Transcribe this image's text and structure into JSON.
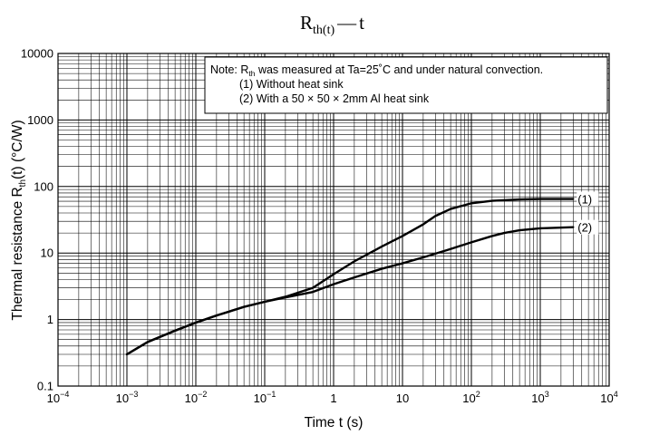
{
  "chart_data": {
    "type": "line",
    "title": {
      "main": "R",
      "sub": "th(t)",
      "dash": "—",
      "var": "t"
    },
    "xlabel": "Time   t   (s)",
    "ylabel": {
      "prefix": "Thermal resistance   R",
      "sub": "th",
      "suffix": "(t)    (°C/W)"
    },
    "x_scale": "log",
    "y_scale": "log",
    "xlim": [
      0.0001,
      10000
    ],
    "ylim": [
      0.1,
      10000
    ],
    "x_ticks": [
      {
        "value": 0.0001,
        "base": "10",
        "exp": "−4"
      },
      {
        "value": 0.001,
        "base": "10",
        "exp": "−3"
      },
      {
        "value": 0.01,
        "base": "10",
        "exp": "−2"
      },
      {
        "value": 0.1,
        "base": "10",
        "exp": "−1"
      },
      {
        "value": 1,
        "base": "1",
        "exp": ""
      },
      {
        "value": 10,
        "base": "10",
        "exp": ""
      },
      {
        "value": 100,
        "base": "10",
        "exp": "2"
      },
      {
        "value": 1000,
        "base": "10",
        "exp": "3"
      },
      {
        "value": 10000,
        "base": "10",
        "exp": "4"
      }
    ],
    "y_ticks": [
      {
        "value": 0.1,
        "label": "0.1"
      },
      {
        "value": 1,
        "label": "1"
      },
      {
        "value": 10,
        "label": "10"
      },
      {
        "value": 100,
        "label": "100"
      },
      {
        "value": 1000,
        "label": "1000"
      },
      {
        "value": 10000,
        "label": "10000"
      }
    ],
    "grid": true,
    "note": {
      "line1_pre": "Note: R",
      "line1_sub": "th",
      "line1_post": " was measured at Ta=25˚C and under natural convection.",
      "line2": "(1) Without heat sink",
      "line3": "(2) With a 50 × 50 × 2mm Al heat sink"
    },
    "series": [
      {
        "label": "(1)",
        "color": "#000000",
        "points": [
          [
            0.001,
            0.3
          ],
          [
            0.002,
            0.46
          ],
          [
            0.005,
            0.68
          ],
          [
            0.01,
            0.9
          ],
          [
            0.02,
            1.15
          ],
          [
            0.05,
            1.55
          ],
          [
            0.1,
            1.85
          ],
          [
            0.2,
            2.2
          ],
          [
            0.5,
            3.0
          ],
          [
            1,
            4.8
          ],
          [
            2,
            7.5
          ],
          [
            5,
            12.5
          ],
          [
            10,
            18
          ],
          [
            20,
            27
          ],
          [
            30,
            36
          ],
          [
            50,
            46
          ],
          [
            100,
            56
          ],
          [
            200,
            61
          ],
          [
            500,
            64
          ],
          [
            1000,
            65
          ],
          [
            3000,
            65
          ]
        ]
      },
      {
        "label": "(2)",
        "color": "#000000",
        "points": [
          [
            0.001,
            0.3
          ],
          [
            0.002,
            0.46
          ],
          [
            0.005,
            0.68
          ],
          [
            0.01,
            0.9
          ],
          [
            0.02,
            1.15
          ],
          [
            0.05,
            1.55
          ],
          [
            0.1,
            1.85
          ],
          [
            0.2,
            2.15
          ],
          [
            0.5,
            2.6
          ],
          [
            1,
            3.4
          ],
          [
            2,
            4.3
          ],
          [
            5,
            5.8
          ],
          [
            10,
            7
          ],
          [
            20,
            8.6
          ],
          [
            50,
            11.5
          ],
          [
            100,
            14.5
          ],
          [
            200,
            18
          ],
          [
            300,
            20
          ],
          [
            500,
            22
          ],
          [
            1000,
            23.5
          ],
          [
            3000,
            24.5
          ]
        ]
      }
    ]
  }
}
